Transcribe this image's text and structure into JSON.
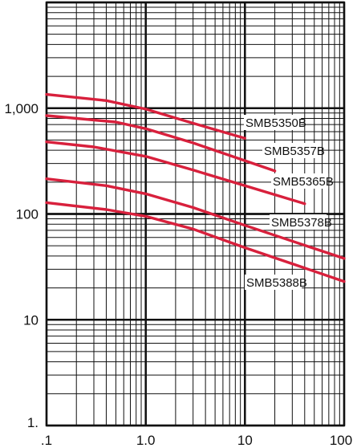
{
  "chart_data": {
    "type": "line",
    "title": "",
    "xlabel": "",
    "ylabel": "",
    "xscale": "log",
    "yscale": "log",
    "xlim": [
      0.1,
      100
    ],
    "ylim": [
      1,
      10000
    ],
    "grid": true,
    "line_color": "#d8203c",
    "x_tick_labels": [
      {
        "value": 0.1,
        "label": ".1"
      },
      {
        "value": 1,
        "label": "1.0"
      },
      {
        "value": 10,
        "label": "10"
      },
      {
        "value": 100,
        "label": "100"
      }
    ],
    "y_tick_labels": [
      {
        "value": 1,
        "label": "1."
      },
      {
        "value": 10,
        "label": "10"
      },
      {
        "value": 100,
        "label": "100"
      },
      {
        "value": 1000,
        "label": "1,000"
      }
    ],
    "series": [
      {
        "name": "SMB5350B",
        "x": [
          0.1,
          0.4,
          1,
          3,
          10
        ],
        "y": [
          1350,
          1180,
          980,
          720,
          520
        ]
      },
      {
        "name": "SMB5357B",
        "x": [
          0.1,
          0.5,
          1,
          3,
          20
        ],
        "y": [
          850,
          740,
          640,
          470,
          255
        ]
      },
      {
        "name": "SMB5365B",
        "x": [
          0.1,
          0.3,
          1,
          3,
          40
        ],
        "y": [
          480,
          430,
          350,
          260,
          125
        ]
      },
      {
        "name": "SMB5378B",
        "x": [
          0.1,
          0.4,
          1,
          3,
          10,
          100
        ],
        "y": [
          215,
          185,
          155,
          115,
          78,
          38
        ]
      },
      {
        "name": "SMB5388B",
        "x": [
          0.1,
          0.4,
          1,
          3,
          10,
          100
        ],
        "y": [
          128,
          110,
          95,
          72,
          48,
          23
        ]
      }
    ]
  }
}
